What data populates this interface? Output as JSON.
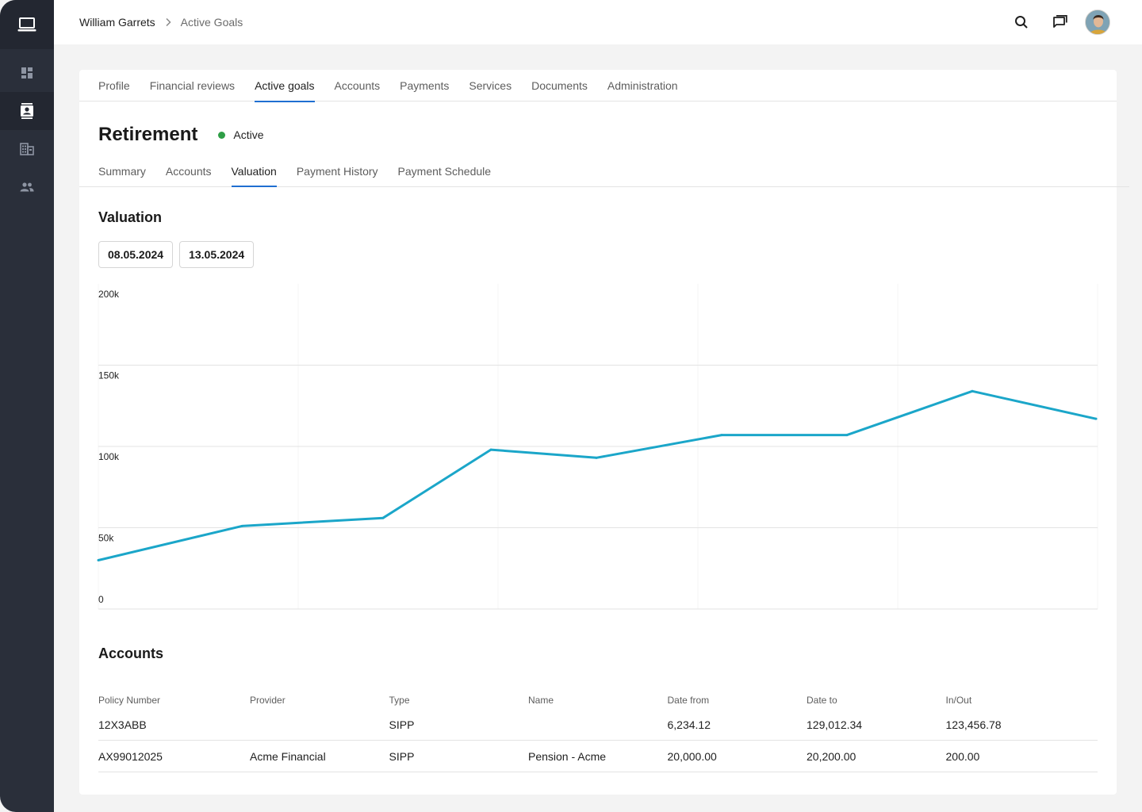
{
  "breadcrumb": {
    "client": "William Garrets",
    "current": "Active Goals"
  },
  "tabs": [
    "Profile",
    "Financial reviews",
    "Active goals",
    "Accounts",
    "Payments",
    "Services",
    "Documents",
    "Administration"
  ],
  "active_tab": "Active goals",
  "goal": {
    "title": "Retirement",
    "status": "Active"
  },
  "subtabs": [
    "Summary",
    "Accounts",
    "Valuation",
    "Payment History",
    "Payment Schedule"
  ],
  "active_subtab": "Valuation",
  "valuation": {
    "title": "Valuation",
    "date_from": "08.05.2024",
    "date_to": "13.05.2024"
  },
  "chart_data": {
    "type": "line",
    "title": "",
    "xlabel": "",
    "ylabel": "",
    "ylim": [
      0,
      200000
    ],
    "y_ticks": [
      "200k",
      "150k",
      "100k",
      "50k",
      "0"
    ],
    "y_tick_values": [
      200000,
      150000,
      100000,
      50000,
      0
    ],
    "grid": true,
    "series": [
      {
        "values": [
          30000,
          51000,
          56000,
          98000,
          93000,
          107000,
          107000,
          134000,
          117000
        ]
      }
    ],
    "color": "#1ba6c9"
  },
  "accounts": {
    "title": "Accounts",
    "columns": [
      "Policy Number",
      "Provider",
      "Type",
      "Name",
      "Date from",
      "Date to",
      "In/Out"
    ],
    "rows": [
      [
        "12X3ABB",
        "",
        "SIPP",
        "",
        "6,234.12",
        "129,012.34",
        "123,456.78"
      ],
      [
        "AX99012025",
        "Acme Financial",
        "SIPP",
        "Pension - Acme",
        "20,000.00",
        "20,200.00",
        "200.00"
      ]
    ]
  },
  "icons": {
    "logo": "laptop-icon",
    "nav": [
      "dashboard-icon",
      "contacts-icon",
      "building-icon",
      "people-icon"
    ],
    "top": [
      "search-icon",
      "chat-icon"
    ]
  },
  "colors": {
    "accent": "#1f6fd1",
    "status_active": "#2e9e46",
    "line": "#1ba6c9",
    "sidebar": "#2a2f3a"
  }
}
